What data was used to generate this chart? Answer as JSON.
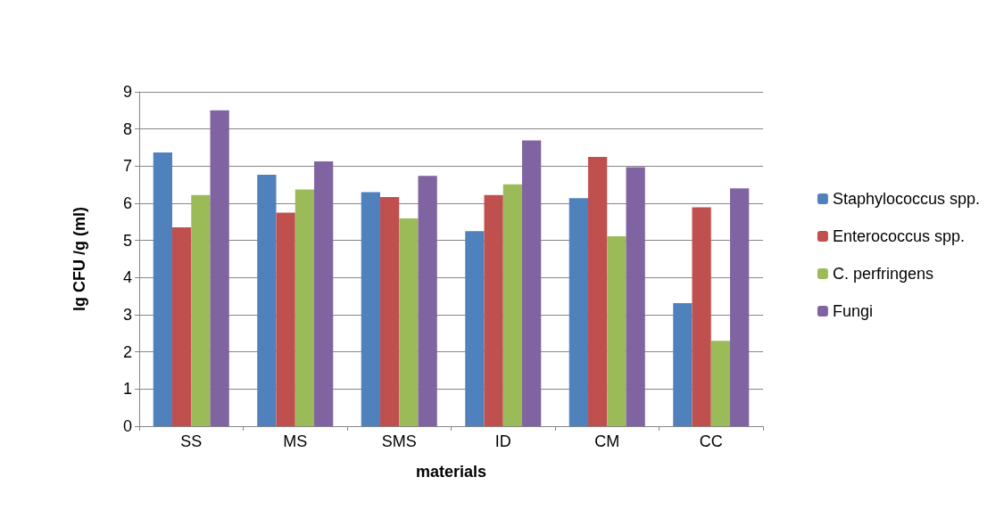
{
  "chart_data": {
    "type": "bar",
    "xlabel": "materials",
    "ylabel": "lg CFU /g (ml)",
    "categories": [
      "SS",
      "MS",
      "SMS",
      "ID",
      "CM",
      "CC"
    ],
    "series": [
      {
        "name": "Staphylococcus spp.",
        "color": "#4f81bd",
        "values": [
          7.37,
          6.77,
          6.3,
          5.25,
          6.14,
          3.31
        ]
      },
      {
        "name": "Enterococcus spp.",
        "color": "#c0504d",
        "values": [
          5.35,
          5.75,
          6.17,
          6.22,
          7.25,
          5.89
        ]
      },
      {
        "name": "C. perfringens",
        "color": "#9bbb59",
        "values": [
          6.22,
          6.37,
          5.59,
          6.51,
          5.11,
          2.3
        ]
      },
      {
        "name": "Fungi",
        "color": "#8064a2",
        "values": [
          8.5,
          7.13,
          6.74,
          7.69,
          6.97,
          6.4
        ]
      }
    ],
    "ylim": [
      0,
      9
    ],
    "yticks": [
      0,
      1,
      2,
      3,
      4,
      5,
      6,
      7,
      8,
      9
    ],
    "grid": "y",
    "legend": "right"
  }
}
